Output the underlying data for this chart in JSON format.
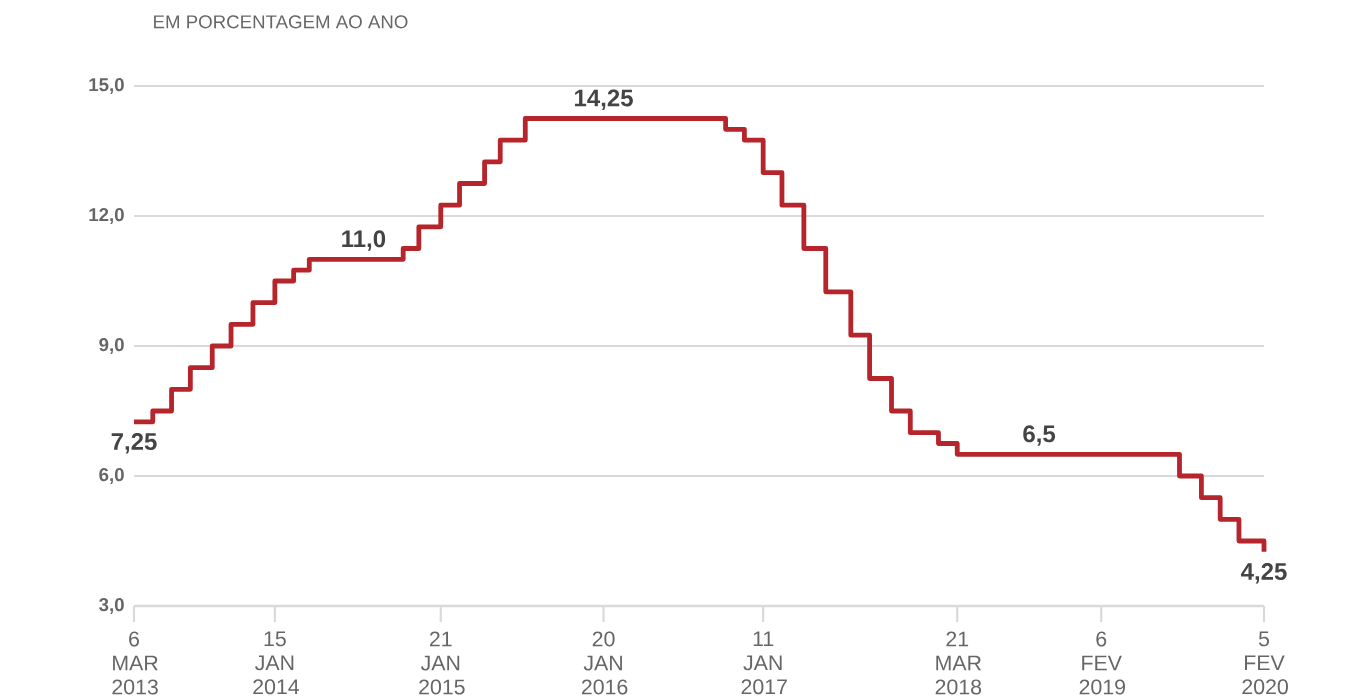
{
  "chart_data": {
    "type": "step",
    "ylabel": "EM PORCENTAGEM AO ANO",
    "x": [
      "2013-03-06",
      "2013-04-17",
      "2013-05-29",
      "2013-07-10",
      "2013-08-28",
      "2013-10-09",
      "2013-11-27",
      "2014-01-15",
      "2014-02-26",
      "2014-04-02",
      "2014-10-29",
      "2014-12-03",
      "2015-01-21",
      "2015-03-04",
      "2015-04-29",
      "2015-06-03",
      "2015-07-29",
      "2016-10-19",
      "2016-11-30",
      "2017-01-11",
      "2017-02-22",
      "2017-04-12",
      "2017-05-31",
      "2017-07-26",
      "2017-09-06",
      "2017-10-25",
      "2017-12-06",
      "2018-02-07",
      "2018-03-21",
      "2019-07-31",
      "2019-09-18",
      "2019-10-30",
      "2019-12-11",
      "2020-02-05"
    ],
    "series": [
      {
        "color": "#b5252b",
        "values": [
          7.25,
          7.5,
          8.0,
          8.5,
          9.0,
          9.5,
          10.0,
          10.5,
          10.75,
          11.0,
          11.25,
          11.75,
          12.25,
          12.75,
          13.25,
          13.75,
          14.25,
          14.0,
          13.75,
          13.0,
          12.25,
          11.25,
          10.25,
          9.25,
          8.25,
          7.5,
          7.0,
          6.75,
          6.5,
          6.0,
          5.5,
          5.0,
          4.5,
          4.25
        ]
      }
    ],
    "xlim": [
      "2013-03-06",
      "2020-02-05"
    ],
    "xticks": [
      {
        "value": "2013-03-06",
        "label": "6 MAR 2013"
      },
      {
        "value": "2014-01-15",
        "label": "15 JAN 2014"
      },
      {
        "value": "2015-01-21",
        "label": "21 JAN 2015"
      },
      {
        "value": "2016-01-20",
        "label": "20 JAN 2016"
      },
      {
        "value": "2017-01-11",
        "label": "11 JAN 2017"
      },
      {
        "value": "2018-03-21",
        "label": "21 MAR 2018"
      },
      {
        "value": "2019-02-06",
        "label": "6 FEV 2019"
      },
      {
        "value": "2020-02-05",
        "label": "5 FEV 2020"
      }
    ],
    "ylim": [
      3,
      15
    ],
    "yticks": [
      {
        "value": 3,
        "label": "3,0"
      },
      {
        "value": 6,
        "label": "6,0"
      },
      {
        "value": 9,
        "label": "9,0"
      },
      {
        "value": 12,
        "label": "12,0"
      },
      {
        "value": 15,
        "label": "15,0"
      }
    ],
    "grid": "y",
    "annotations": [
      {
        "text": "7,25",
        "x": "2013-03-06",
        "y": 7.25
      },
      {
        "text": "11,0",
        "x": "2014-08-01",
        "y": 11.0
      },
      {
        "text": "14,25",
        "x": "2016-01-20",
        "y": 14.25
      },
      {
        "text": "6,5",
        "x": "2018-09-20",
        "y": 6.5
      },
      {
        "text": "4,25",
        "x": "2020-02-05",
        "y": 4.25
      }
    ]
  }
}
